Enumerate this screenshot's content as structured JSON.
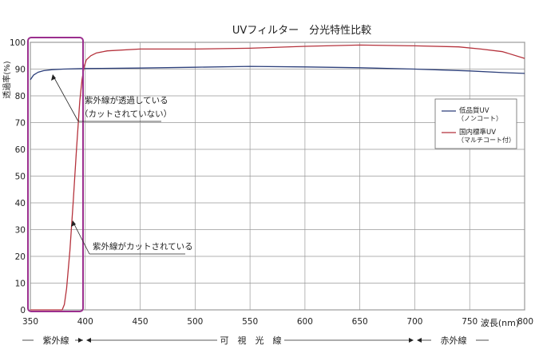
{
  "chart_data": {
    "type": "line",
    "title": "UVフィルター　分光特性比較",
    "xlabel": "波長(nm)",
    "ylabel": "透過率(%)",
    "xlim": [
      350,
      800
    ],
    "ylim": [
      0,
      100
    ],
    "x_ticks": [
      "350",
      "400",
      "450",
      "500",
      "550",
      "600",
      "650",
      "700",
      "750",
      "800"
    ],
    "y_ticks": [
      "0",
      "10",
      "20",
      "30",
      "40",
      "50",
      "60",
      "70",
      "80",
      "90",
      "100"
    ],
    "grid": true,
    "legend_position": "right",
    "series": [
      {
        "name": "低品質UV",
        "name_sub": "（ノンコート）",
        "color": "#2c3f7a",
        "points": [
          [
            350,
            86
          ],
          [
            353,
            87.8
          ],
          [
            357,
            88.8
          ],
          [
            362,
            89.4
          ],
          [
            370,
            89.8
          ],
          [
            380,
            90
          ],
          [
            400,
            90.2
          ],
          [
            450,
            90.4
          ],
          [
            500,
            90.7
          ],
          [
            550,
            91
          ],
          [
            600,
            90.8
          ],
          [
            650,
            90.5
          ],
          [
            700,
            90
          ],
          [
            750,
            89.3
          ],
          [
            780,
            88.7
          ],
          [
            800,
            88.4
          ]
        ]
      },
      {
        "name": "国内標準UV",
        "name_sub": "（マルチコート付）",
        "color": "#b5323c",
        "points": [
          [
            350,
            0
          ],
          [
            379,
            0
          ],
          [
            381,
            2
          ],
          [
            383,
            8
          ],
          [
            386,
            22
          ],
          [
            389,
            40
          ],
          [
            392,
            60
          ],
          [
            395,
            78
          ],
          [
            397,
            86
          ],
          [
            399,
            91
          ],
          [
            401,
            93.5
          ],
          [
            405,
            95
          ],
          [
            410,
            96
          ],
          [
            420,
            96.8
          ],
          [
            450,
            97.5
          ],
          [
            500,
            97.5
          ],
          [
            550,
            97.8
          ],
          [
            600,
            98.5
          ],
          [
            650,
            99
          ],
          [
            700,
            98.7
          ],
          [
            740,
            98.3
          ],
          [
            760,
            97.5
          ],
          [
            780,
            96.5
          ],
          [
            800,
            94
          ]
        ]
      }
    ],
    "annotations": [
      {
        "line1": "紫外線が透過している",
        "line2": "（カットされていない）"
      },
      {
        "line1": "紫外線がカットされている"
      }
    ],
    "bands": [
      {
        "label": "紫外線"
      },
      {
        "label": "可　視　光　線"
      },
      {
        "label": "赤外線"
      }
    ]
  }
}
